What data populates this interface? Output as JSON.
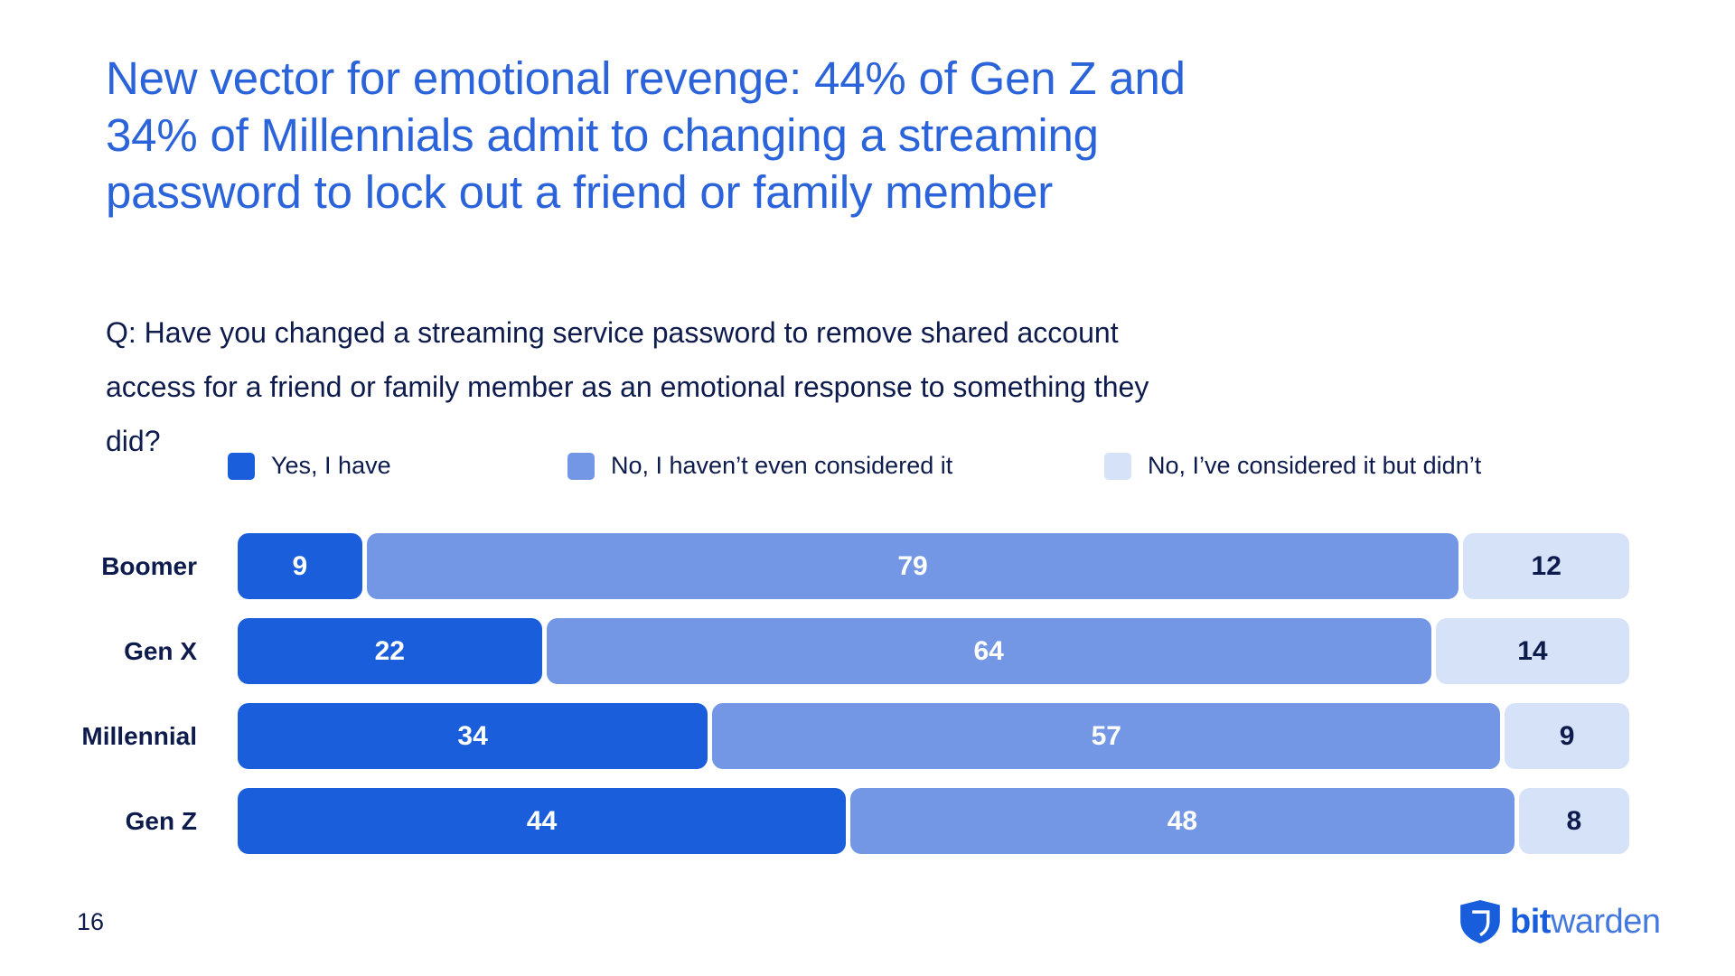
{
  "slide": {
    "title_lines": [
      "New vector for emotional revenge: 44% of Gen Z and",
      "34% of Millennials admit to changing a streaming",
      "password to lock out a friend or family member"
    ],
    "question_lines": [
      "Q: Have you changed a streaming service password to remove shared account",
      "access for a friend or family member as an emotional response to something they",
      "did?"
    ],
    "page_number": "16",
    "logo_text_bold": "bit",
    "logo_text_light": "warden"
  },
  "colors": {
    "title_blue": "#2A63DA",
    "navy_text": "#0E1B4D",
    "series1_blue": "#1A5EDB",
    "series2_blue": "#7397E5",
    "series3_blue": "#D6E2F8",
    "logo_blue": "#175DDC"
  },
  "legend": [
    {
      "label": "Yes, I have",
      "color": "#1A5EDB"
    },
    {
      "label": "No, I haven’t even considered it",
      "color": "#7397E5"
    },
    {
      "label": "No, I’ve considered it but didn’t",
      "color": "#D6E2F8"
    }
  ],
  "chart_data": {
    "type": "bar",
    "orientation": "horizontal",
    "stacked": true,
    "unit": "percent",
    "categories": [
      "Boomer",
      "Gen X",
      "Millennial",
      "Gen Z"
    ],
    "series": [
      {
        "name": "Yes, I have",
        "color": "#1A5EDB",
        "text_color": "#FFFFFF",
        "values": [
          9,
          22,
          34,
          44
        ]
      },
      {
        "name": "No, I haven’t even considered it",
        "color": "#7397E5",
        "text_color": "#FFFFFF",
        "values": [
          79,
          64,
          57,
          48
        ]
      },
      {
        "name": "No, I’ve considered it but didn’t",
        "color": "#D6E2F8",
        "text_color": "#0E1B4D",
        "values": [
          12,
          14,
          9,
          8
        ]
      }
    ],
    "xlim": [
      0,
      100
    ],
    "legend_position": "top",
    "grid": false
  }
}
